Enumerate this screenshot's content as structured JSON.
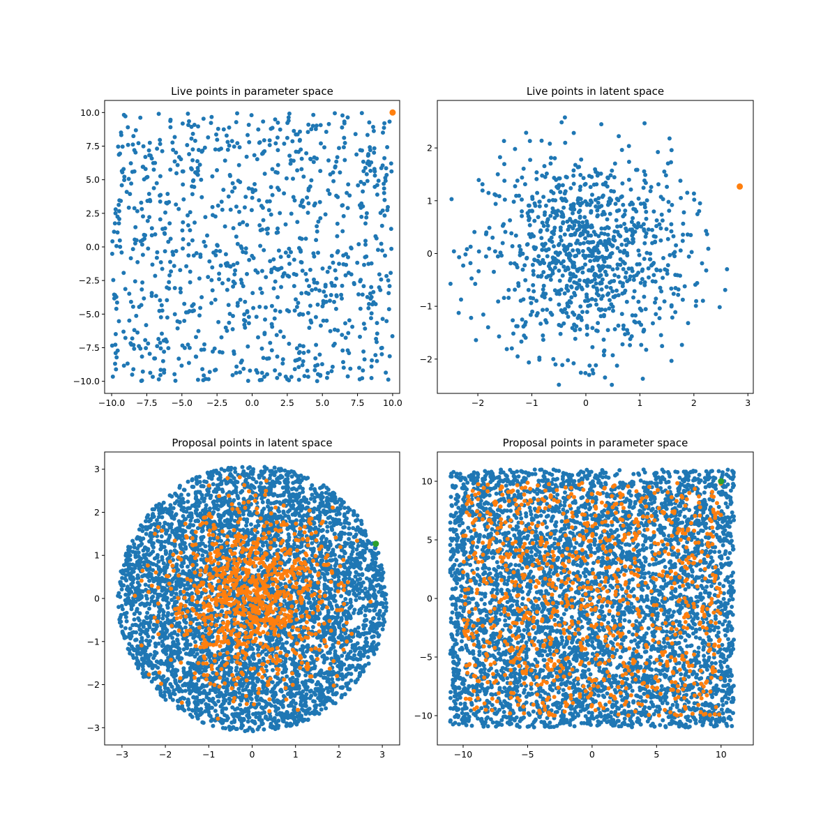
{
  "colors": {
    "blue": "#1f77b4",
    "orange": "#ff7f0e",
    "green": "#2ca02c"
  },
  "chart_data": [
    {
      "type": "scatter",
      "title": "Live points in parameter space",
      "xlim": [
        -10.5,
        10.5
      ],
      "ylim": [
        -10.9,
        10.9
      ],
      "xticks": [
        -10.0,
        -7.5,
        -5.0,
        -2.5,
        0.0,
        2.5,
        5.0,
        7.5,
        10.0
      ],
      "yticks": [
        -10.0,
        -7.5,
        -5.0,
        -2.5,
        0.0,
        2.5,
        5.0,
        7.5,
        10.0
      ],
      "tick_format": "fixed1",
      "grid": false,
      "series": [
        {
          "color": "blue",
          "marker_size": 3,
          "distribution": "uniform_square",
          "center": [
            0,
            0
          ],
          "half_width": 10,
          "count": 1000
        },
        {
          "color": "orange",
          "marker_size": 4.5,
          "points": [
            [
              10.0,
              10.0
            ]
          ]
        }
      ]
    },
    {
      "type": "scatter",
      "title": "Live points in latent space",
      "xlim": [
        -2.75,
        3.1
      ],
      "ylim": [
        -2.65,
        2.9
      ],
      "xticks": [
        -2,
        -1,
        0,
        1,
        2,
        3
      ],
      "yticks": [
        -2,
        -1,
        0,
        1,
        2
      ],
      "tick_format": "int",
      "grid": false,
      "series": [
        {
          "color": "blue",
          "marker_size": 3,
          "distribution": "gaussian_truncated",
          "center": [
            0,
            0
          ],
          "sigma": 0.95,
          "max_radius": 2.7,
          "count": 1000
        },
        {
          "color": "orange",
          "marker_size": 4.5,
          "points": [
            [
              2.85,
              1.27
            ]
          ]
        }
      ]
    },
    {
      "type": "scatter",
      "title": "Proposal points in latent space",
      "xlim": [
        -3.4,
        3.4
      ],
      "ylim": [
        -3.4,
        3.4
      ],
      "xticks": [
        -3,
        -2,
        -1,
        0,
        1,
        2,
        3
      ],
      "yticks": [
        -3,
        -2,
        -1,
        0,
        1,
        2,
        3
      ],
      "tick_format": "int",
      "grid": false,
      "series": [
        {
          "color": "blue",
          "marker_size": 3,
          "distribution": "uniform_disk",
          "center": [
            0,
            0
          ],
          "radius": 3.1,
          "count": 5000
        },
        {
          "color": "orange",
          "marker_size": 3,
          "distribution": "gaussian_truncated",
          "center": [
            0,
            0
          ],
          "sigma": 1.0,
          "max_radius": 3.0,
          "count": 1000
        },
        {
          "color": "green",
          "marker_size": 4.5,
          "points": [
            [
              2.85,
              1.27
            ]
          ]
        }
      ]
    },
    {
      "type": "scatter",
      "title": "Proposal points in parameter space",
      "xlim": [
        -12.0,
        12.5
      ],
      "ylim": [
        -12.5,
        12.5
      ],
      "xticks": [
        -10,
        -5,
        0,
        5,
        10
      ],
      "yticks": [
        -10,
        -5,
        0,
        5,
        10
      ],
      "tick_format": "int",
      "grid": false,
      "series": [
        {
          "color": "blue",
          "marker_size": 3,
          "distribution": "uniform_square",
          "center": [
            0,
            0
          ],
          "half_width": 11.0,
          "count": 5000
        },
        {
          "color": "orange",
          "marker_size": 3,
          "distribution": "uniform_square",
          "center": [
            0,
            0
          ],
          "half_width": 10,
          "count": 1000
        },
        {
          "color": "green",
          "marker_size": 4.5,
          "points": [
            [
              10.0,
              10.0
            ]
          ]
        }
      ]
    }
  ]
}
